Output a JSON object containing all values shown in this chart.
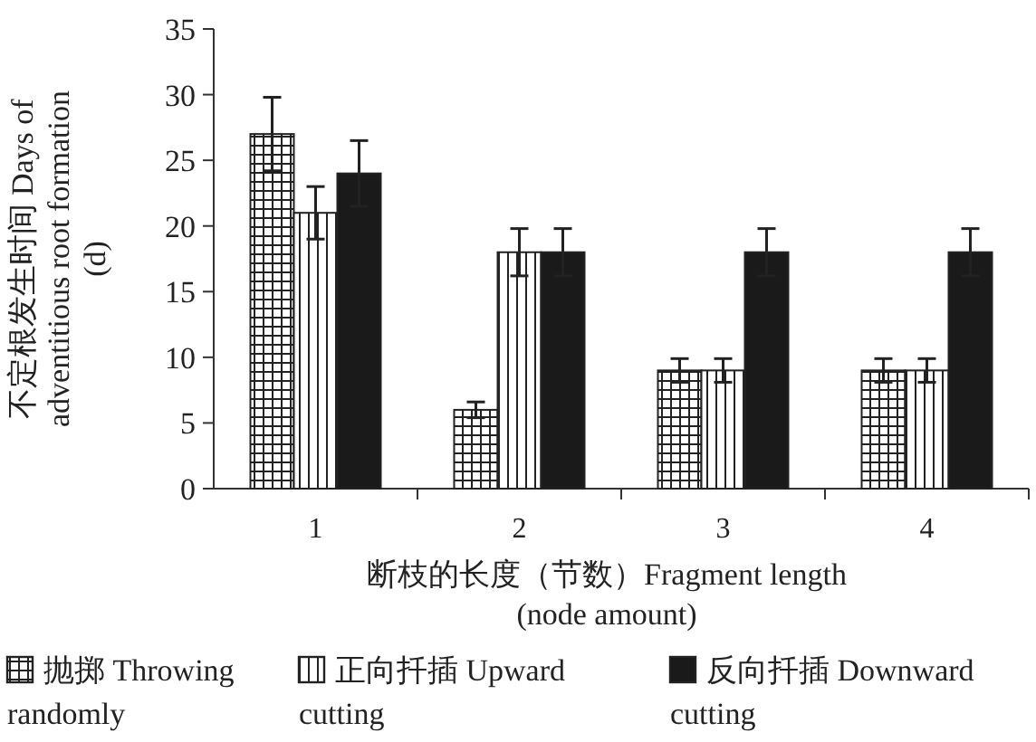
{
  "chart_data": {
    "type": "bar",
    "xlabel": "断枝的长度（节数）Fragment length (node amount)",
    "ylabel": "不定根发生时间 Days of adventitious root formation (d)",
    "categories": [
      "1",
      "2",
      "3",
      "4"
    ],
    "series": [
      {
        "name": "抛掷 Throwing randomly",
        "color": "#222222",
        "values": [
          27,
          6,
          9,
          9
        ],
        "errors": [
          2.8,
          0.6,
          0.9,
          0.9
        ]
      },
      {
        "name": "正向扦插 Upward cutting",
        "color": "#222222",
        "values": [
          21,
          18,
          9,
          9
        ],
        "errors": [
          2,
          1.8,
          0.9,
          0.9
        ]
      },
      {
        "name": "反向扦插 Downward cutting",
        "color": "#1a1a1a",
        "values": [
          24,
          18,
          18,
          18
        ],
        "errors": [
          2.5,
          1.8,
          1.8,
          1.8
        ]
      }
    ],
    "ylim": [
      0,
      35
    ],
    "yticks": [
      0,
      5,
      10,
      15,
      20,
      25,
      30,
      35
    ],
    "grid": false,
    "legend": "bottom"
  }
}
